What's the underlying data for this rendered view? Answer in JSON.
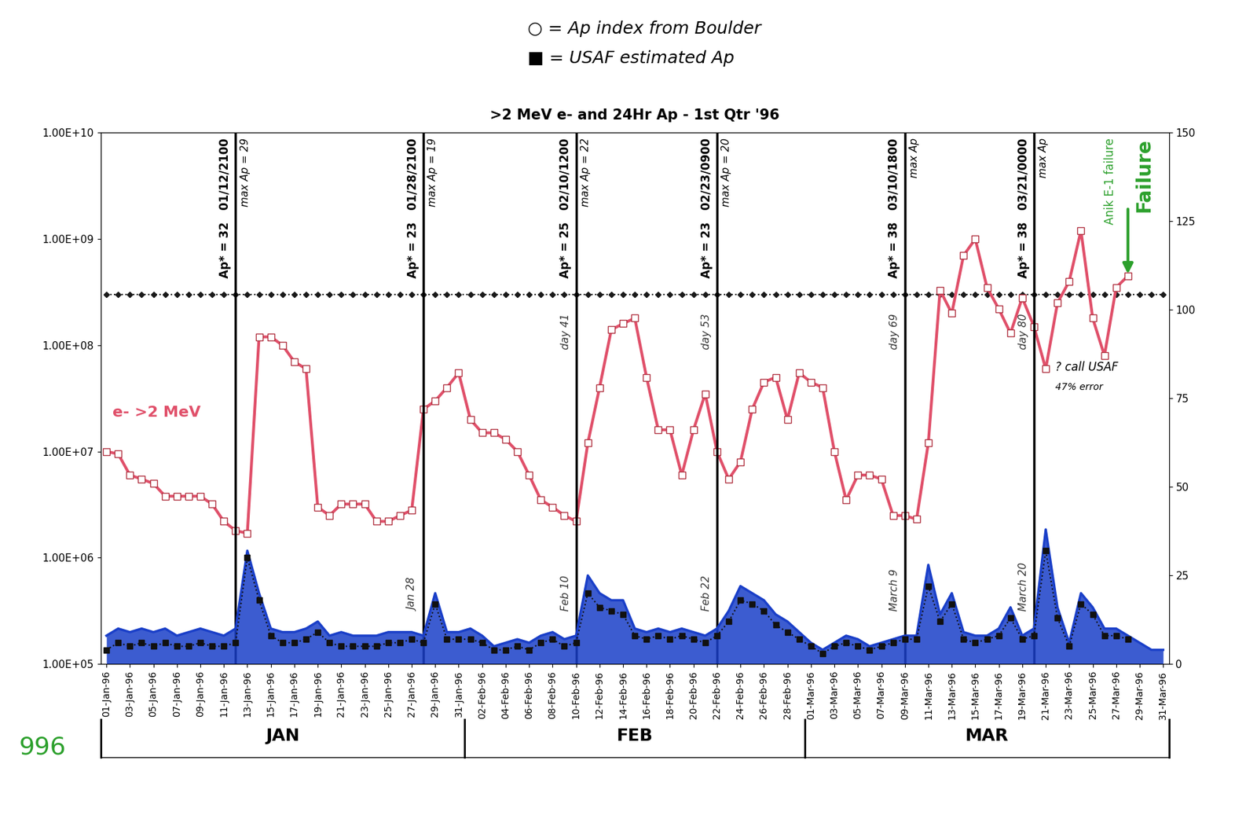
{
  "chart_data": {
    "type": "line",
    "title": ">2 MeV e- and 24Hr Ap - 1st Qtr '96",
    "log": "y",
    "grid": false,
    "x": [
      1,
      2,
      3,
      4,
      5,
      6,
      7,
      8,
      9,
      10,
      11,
      12,
      13,
      14,
      15,
      16,
      17,
      18,
      19,
      20,
      21,
      22,
      23,
      24,
      25,
      26,
      27,
      28,
      29,
      30,
      31,
      32,
      33,
      34,
      35,
      36,
      37,
      38,
      39,
      40,
      41,
      42,
      43,
      44,
      45,
      46,
      47,
      48,
      49,
      50,
      51,
      52,
      53,
      54,
      55,
      56,
      57,
      58,
      59,
      60,
      61,
      62,
      63,
      64,
      65,
      66,
      67,
      68,
      69,
      70,
      71,
      72,
      73,
      74,
      75,
      76,
      77,
      78,
      79,
      80,
      81,
      82,
      83,
      84,
      85,
      86,
      87,
      88,
      89,
      90,
      91
    ],
    "xlim": [
      0.5,
      91.5
    ],
    "xticks": [
      {
        "value": 1,
        "label": "01-Jan-96"
      },
      {
        "value": 3,
        "label": "03-Jan-96"
      },
      {
        "value": 5,
        "label": "05-Jan-96"
      },
      {
        "value": 7,
        "label": "07-Jan-96"
      },
      {
        "value": 9,
        "label": "09-Jan-96"
      },
      {
        "value": 11,
        "label": "11-Jan-96"
      },
      {
        "value": 13,
        "label": "13-Jan-96"
      },
      {
        "value": 15,
        "label": "15-Jan-96"
      },
      {
        "value": 17,
        "label": "17-Jan-96"
      },
      {
        "value": 19,
        "label": "19-Jan-96"
      },
      {
        "value": 21,
        "label": "21-Jan-96"
      },
      {
        "value": 23,
        "label": "23-Jan-96"
      },
      {
        "value": 25,
        "label": "25-Jan-96"
      },
      {
        "value": 27,
        "label": "27-Jan-96"
      },
      {
        "value": 29,
        "label": "29-Jan-96"
      },
      {
        "value": 31,
        "label": "31-Jan-96"
      },
      {
        "value": 33,
        "label": "02-Feb-96"
      },
      {
        "value": 35,
        "label": "04-Feb-96"
      },
      {
        "value": 37,
        "label": "06-Feb-96"
      },
      {
        "value": 39,
        "label": "08-Feb-96"
      },
      {
        "value": 41,
        "label": "10-Feb-96"
      },
      {
        "value": 43,
        "label": "12-Feb-96"
      },
      {
        "value": 45,
        "label": "14-Feb-96"
      },
      {
        "value": 47,
        "label": "16-Feb-96"
      },
      {
        "value": 49,
        "label": "18-Feb-96"
      },
      {
        "value": 51,
        "label": "20-Feb-96"
      },
      {
        "value": 53,
        "label": "22-Feb-96"
      },
      {
        "value": 55,
        "label": "24-Feb-96"
      },
      {
        "value": 57,
        "label": "26-Feb-96"
      },
      {
        "value": 59,
        "label": "28-Feb-96"
      },
      {
        "value": 61,
        "label": "01-Mar-96"
      },
      {
        "value": 63,
        "label": "03-Mar-96"
      },
      {
        "value": 65,
        "label": "05-Mar-96"
      },
      {
        "value": 67,
        "label": "07-Mar-96"
      },
      {
        "value": 69,
        "label": "09-Mar-96"
      },
      {
        "value": 71,
        "label": "11-Mar-96"
      },
      {
        "value": 73,
        "label": "13-Mar-96"
      },
      {
        "value": 75,
        "label": "15-Mar-96"
      },
      {
        "value": 77,
        "label": "17-Mar-96"
      },
      {
        "value": 79,
        "label": "19-Mar-96"
      },
      {
        "value": 81,
        "label": "21-Mar-96"
      },
      {
        "value": 83,
        "label": "23-Mar-96"
      },
      {
        "value": 85,
        "label": "25-Mar-96"
      },
      {
        "value": 87,
        "label": "27-Mar-96"
      },
      {
        "value": 89,
        "label": "29-Mar-96"
      },
      {
        "value": 91,
        "label": "31-Mar-96"
      }
    ],
    "ylim": [
      100000,
      10000000000
    ],
    "yticks": [
      {
        "value": 100000,
        "label": "1.00E+05"
      },
      {
        "value": 1000000,
        "label": "1.00E+06"
      },
      {
        "value": 10000000,
        "label": "1.00E+07"
      },
      {
        "value": 100000000,
        "label": "1.00E+08"
      },
      {
        "value": 1000000000,
        "label": "1.00E+09"
      },
      {
        "value": 10000000000,
        "label": "1.00E+10"
      }
    ],
    "y2lim": [
      0,
      150
    ],
    "y2ticks": [
      0,
      25,
      50,
      75,
      100,
      125,
      150
    ],
    "series": [
      {
        "name": "e- >2 MeV",
        "type": "line",
        "color": "#e0506a",
        "marker": "square",
        "line_style": "solid",
        "values": [
          10000000.0,
          9500000.0,
          6000000.0,
          5500000.0,
          5000000.0,
          3800000.0,
          3800000.0,
          3800000.0,
          3800000.0,
          3200000.0,
          2200000.0,
          1800000.0,
          1700000.0,
          120000000.0,
          120000000.0,
          100000000.0,
          70000000.0,
          60000000.0,
          3000000.0,
          2500000.0,
          3200000.0,
          3200000.0,
          3200000.0,
          2200000.0,
          2200000.0,
          2500000.0,
          2800000.0,
          25000000.0,
          30000000.0,
          40000000.0,
          55000000.0,
          20000000.0,
          15000000.0,
          15000000.0,
          13000000.0,
          10000000.0,
          6000000.0,
          3500000.0,
          3000000.0,
          2500000.0,
          2200000.0,
          12000000.0,
          40000000.0,
          140000000.0,
          160000000.0,
          180000000.0,
          50000000.0,
          16000000.0,
          16000000.0,
          6000000.0,
          16000000.0,
          35000000.0,
          10000000.0,
          5500000.0,
          8000000.0,
          25000000.0,
          45000000.0,
          50000000.0,
          20000000.0,
          55000000.0,
          45000000.0,
          40000000.0,
          10000000.0,
          3500000.0,
          6000000.0,
          6000000.0,
          5500000.0,
          2500000.0,
          2500000.0,
          2300000.0,
          12000000.0,
          330000000.0,
          200000000.0,
          700000000.0,
          1000000000.0,
          350000000.0,
          220000000.0,
          130000000.0,
          280000000.0,
          150000000.0,
          60000000.0,
          250000000.0,
          400000000.0,
          1200000000.0,
          180000000.0,
          80000000.0,
          350000000.0,
          450000000.0,
          null,
          null,
          null
        ]
      },
      {
        "type": "area",
        "axis": "y2",
        "color": "#1a3fc8",
        "marker": "none",
        "line_style": "solid",
        "values": [
          8,
          10,
          9,
          10,
          9,
          10,
          8,
          9,
          10,
          9,
          8,
          10,
          32,
          20,
          10,
          9,
          9,
          10,
          12,
          8,
          9,
          8,
          8,
          8,
          9,
          9,
          9,
          8,
          20,
          9,
          9,
          10,
          8,
          5,
          6,
          7,
          6,
          8,
          9,
          7,
          8,
          25,
          20,
          18,
          18,
          10,
          9,
          10,
          9,
          10,
          9,
          8,
          10,
          15,
          22,
          20,
          18,
          14,
          12,
          9,
          6,
          4,
          6,
          8,
          7,
          5,
          6,
          7,
          8,
          8,
          28,
          14,
          20,
          9,
          8,
          8,
          10,
          16,
          8,
          10,
          38,
          16,
          6,
          20,
          16,
          10,
          10,
          8,
          6,
          4,
          4
        ]
      },
      {
        "type": "line",
        "axis": "y2",
        "color": "#111111",
        "marker": "square",
        "line_style": "dotted",
        "values": [
          4,
          6,
          5,
          6,
          5,
          6,
          5,
          5,
          6,
          5,
          5,
          6,
          30,
          18,
          8,
          6,
          6,
          7,
          9,
          6,
          5,
          5,
          5,
          5,
          6,
          6,
          7,
          6,
          17,
          7,
          7,
          7,
          6,
          4,
          4,
          5,
          4,
          6,
          7,
          5,
          6,
          20,
          16,
          15,
          14,
          8,
          7,
          8,
          7,
          8,
          7,
          6,
          8,
          12,
          18,
          17,
          15,
          11,
          9,
          7,
          5,
          3,
          5,
          6,
          5,
          4,
          5,
          6,
          7,
          7,
          22,
          12,
          17,
          7,
          6,
          7,
          8,
          13,
          7,
          8,
          32,
          13,
          5,
          17,
          14,
          8,
          8,
          7,
          null,
          null,
          null
        ]
      }
    ],
    "threshold": {
      "value": 300000000,
      "color": "#1a1a1a",
      "marker": "diamond",
      "line_style": "dotted"
    },
    "events": [
      {
        "x": 12,
        "ap_star": "Ap* = 32",
        "time": "01/12/2100",
        "max_ap": "max Ap = 29"
      },
      {
        "x": 28,
        "ap_star": "Ap* = 23",
        "time": "01/28/2100",
        "max_ap": "max Ap = 19",
        "date": "Jan 28"
      },
      {
        "x": 41,
        "ap_star": "Ap* = 25",
        "time": "02/10/1200",
        "max_ap": "max Ap = 22",
        "day": "day 41",
        "date": "Feb 10"
      },
      {
        "x": 53,
        "ap_star": "Ap* = 23",
        "time": "02/23/0900",
        "max_ap": "max Ap = 20",
        "day": "day 53",
        "date": "Feb 22"
      },
      {
        "x": 69,
        "ap_star": "Ap* = 38",
        "time": "03/10/1800",
        "max_ap": "max Ap",
        "day": "day 69",
        "date": "March 9"
      },
      {
        "x": 80,
        "ap_star": "Ap* = 38",
        "time": "03/21/0000",
        "max_ap": "max Ap",
        "day": "day 80",
        "date": "March 20"
      }
    ],
    "failure": {
      "x": 88,
      "label": "Anik E-1 failure",
      "note": "Failure",
      "color": "#2ca02c"
    },
    "months": [
      {
        "label": "JAN",
        "start": 1,
        "end": 31
      },
      {
        "label": "FEB",
        "start": 32,
        "end": 60
      },
      {
        "label": "MAR",
        "start": 61,
        "end": 91
      }
    ],
    "annotations": {
      "legend_notes": [
        "○ = Ap index from Boulder",
        "■ = USAF estimated Ap"
      ],
      "usaf_note": [
        "? call USAF",
        "47% error"
      ],
      "year": "996"
    }
  }
}
